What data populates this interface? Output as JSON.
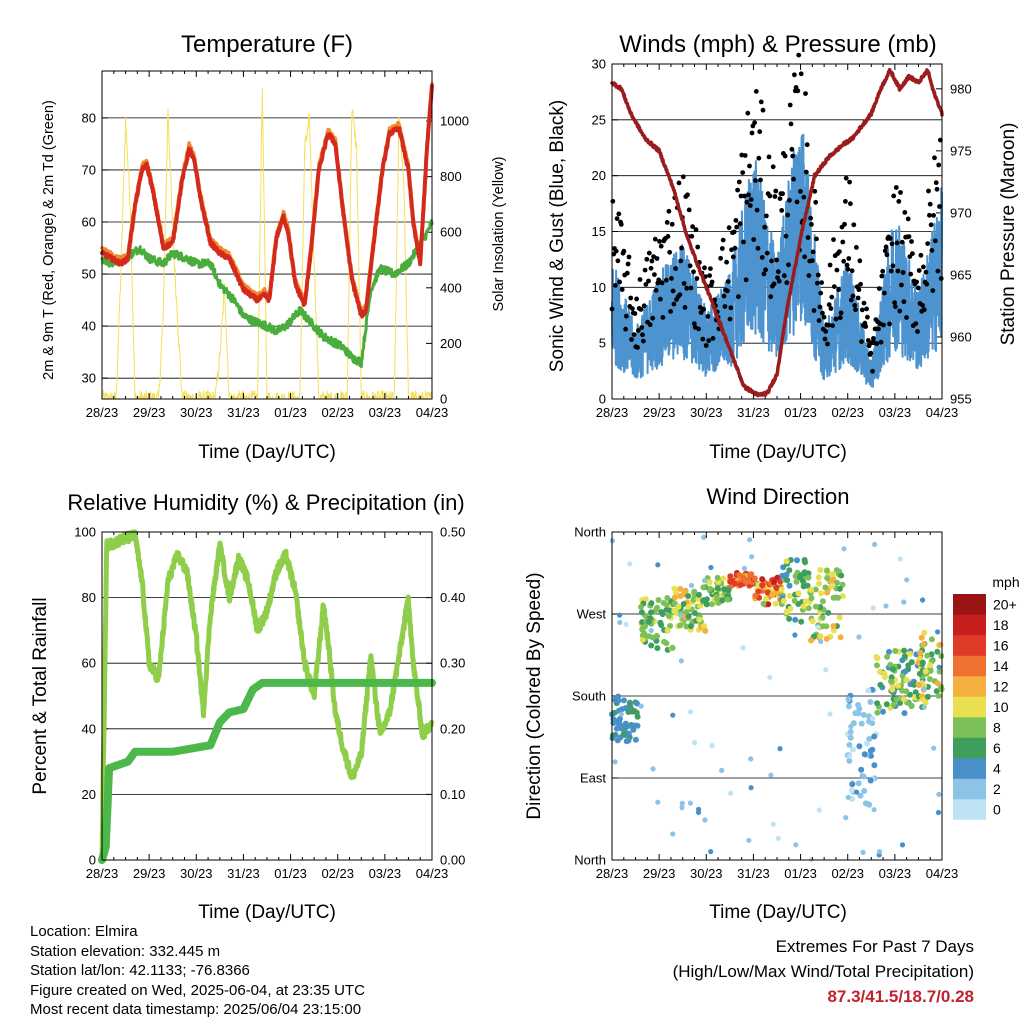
{
  "x_tick_labels": [
    "28/23",
    "29/23",
    "30/23",
    "31/23",
    "01/23",
    "02/23",
    "03/23",
    "04/23"
  ],
  "panels": {
    "temperature": {
      "title": "Temperature (F)",
      "xlabel": "Time (Day/UTC)",
      "ylabel_left": "2m & 9m T (Red, Orange) & 2m Td (Green)",
      "ylabel_right": "Solar Insolation (Yellow)",
      "yticks_left": [
        "30",
        "40",
        "50",
        "60",
        "70",
        "80"
      ],
      "yticks_right": [
        "0",
        "200",
        "400",
        "600",
        "800",
        "1000"
      ]
    },
    "winds": {
      "title": "Winds (mph) & Pressure (mb)",
      "xlabel": "Time (Day/UTC)",
      "ylabel_left": "Sonic Wind & Gust (Blue, Black)",
      "ylabel_right": "Station Pressure (Maroon)",
      "yticks_left": [
        "0",
        "5",
        "10",
        "15",
        "20",
        "25",
        "30"
      ],
      "yticks_right": [
        "955",
        "960",
        "965",
        "970",
        "975",
        "980"
      ]
    },
    "humidity": {
      "title": "Relative Humidity (%) & Precipitation (in)",
      "xlabel": "Time (Day/UTC)",
      "ylabel_left": "Percent & Total Rainfall",
      "yticks_left": [
        "0",
        "20",
        "40",
        "60",
        "80",
        "100"
      ],
      "yticks_right": [
        "0.00",
        "0.10",
        "0.20",
        "0.30",
        "0.40",
        "0.50"
      ]
    },
    "direction": {
      "title": "Wind Direction",
      "xlabel": "Time (Day/UTC)",
      "ylabel_left": "Direction (Colored By Speed)",
      "yticks_left": [
        "North",
        "East",
        "South",
        "West",
        "North"
      ],
      "colorbar_title": "mph",
      "colorbar_labels": [
        "0",
        "2",
        "4",
        "6",
        "8",
        "10",
        "12",
        "14",
        "16",
        "18",
        "20+"
      ],
      "colorbar_colors": [
        "#bfe3f5",
        "#8cc4e8",
        "#4a90c8",
        "#3e9e5e",
        "#7cc05a",
        "#e8e050",
        "#f5b040",
        "#f07030",
        "#e03a28",
        "#c81e1e",
        "#9a1414"
      ]
    }
  },
  "colors": {
    "temp_2m": "#d42a1e",
    "temp_9m": "#f08a2c",
    "dewpoint": "#4aac3c",
    "insolation": "#f5df5a",
    "wind": "#4c93cf",
    "gust": "#000000",
    "pressure": "#9b1c1c",
    "humidity": "#8fce4a",
    "precip": "#4cb84c",
    "extremes_text": "#c0232f"
  },
  "chart_data": [
    {
      "type": "line",
      "title": "Temperature (F)",
      "xlabel": "Time (Day/UTC)",
      "ylabel": "2m & 9m T (Red, Orange) & 2m Td (Green)",
      "y2label": "Solar Insolation (Yellow)",
      "ylim": [
        26,
        89
      ],
      "y2lim": [
        0,
        1180
      ],
      "x_days": [
        0,
        7
      ],
      "series": [
        {
          "name": "2m T",
          "axis": "left",
          "x": [
            0,
            0.2,
            0.4,
            0.55,
            0.7,
            0.85,
            0.95,
            1.1,
            1.3,
            1.5,
            1.7,
            1.85,
            1.95,
            2.1,
            2.3,
            2.5,
            2.7,
            2.9,
            3.0,
            3.15,
            3.3,
            3.45,
            3.55,
            3.7,
            3.85,
            3.95,
            4.1,
            4.3,
            4.45,
            4.6,
            4.8,
            4.95,
            5.1,
            5.3,
            5.5,
            5.6,
            5.75,
            5.95,
            6.1,
            6.3,
            6.5,
            6.6,
            6.75,
            6.9,
            7.0
          ],
          "y": [
            54,
            53,
            52,
            53,
            63,
            70,
            71,
            65,
            55,
            56,
            68,
            74,
            72,
            64,
            56,
            54,
            53,
            49,
            47,
            46,
            45,
            46,
            45,
            57,
            61,
            58,
            48,
            44,
            56,
            70,
            77,
            75,
            63,
            49,
            42,
            43,
            55,
            70,
            77,
            78,
            70,
            60,
            52,
            75,
            86
          ]
        },
        {
          "name": "2m Td",
          "axis": "left",
          "x": [
            0,
            0.2,
            0.5,
            0.8,
            1.0,
            1.3,
            1.5,
            1.8,
            2.0,
            2.3,
            2.5,
            2.8,
            3.0,
            3.2,
            3.5,
            3.7,
            3.9,
            4.2,
            4.5,
            4.7,
            4.9,
            5.1,
            5.3,
            5.5,
            5.7,
            5.9,
            6.2,
            6.5,
            6.7,
            6.9,
            7.0
          ],
          "y": [
            53,
            52,
            53,
            55,
            53,
            52,
            54,
            53,
            52,
            52,
            48,
            45,
            42,
            41,
            40,
            39,
            40,
            43,
            40,
            38,
            37,
            36,
            34,
            33,
            47,
            51,
            50,
            52,
            55,
            58,
            60
          ]
        },
        {
          "name": "Solar Insolation",
          "axis": "right",
          "x": [
            0.3,
            0.4,
            0.5,
            0.6,
            0.7,
            1.2,
            1.3,
            1.4,
            1.5,
            1.7,
            2.4,
            2.5,
            2.6,
            2.7,
            3.3,
            3.4,
            3.5,
            4.2,
            4.3,
            4.4,
            4.6,
            5.2,
            5.3,
            5.4,
            5.5,
            6.2,
            6.3,
            6.4,
            6.5,
            6.6
          ],
          "y": [
            0,
            450,
            1000,
            700,
            0,
            0,
            300,
            1050,
            600,
            0,
            0,
            150,
            400,
            0,
            0,
            1120,
            0,
            0,
            900,
            1000,
            0,
            0,
            1050,
            900,
            0,
            0,
            1000,
            800,
            0,
            0
          ]
        }
      ]
    },
    {
      "type": "line",
      "title": "Winds (mph) & Pressure (mb)",
      "xlabel": "Time (Day/UTC)",
      "ylabel": "Sonic Wind & Gust (Blue, Black)",
      "y2label": "Station Pressure (Maroon)",
      "ylim": [
        0,
        30
      ],
      "y2lim": [
        955,
        982
      ],
      "x_days": [
        0,
        7
      ],
      "series": [
        {
          "name": "Sonic Wind",
          "axis": "left",
          "x": [
            0,
            0.5,
            1,
            1.5,
            2,
            2.5,
            3,
            3.5,
            4,
            4.5,
            5,
            5.5,
            6,
            6.5,
            7
          ],
          "y": [
            8,
            4,
            7,
            9,
            5,
            7,
            14,
            8,
            17,
            4,
            8,
            2,
            11,
            6,
            12
          ]
        },
        {
          "name": "Gust",
          "axis": "left",
          "x": [
            0,
            0.5,
            1,
            1.5,
            2,
            2.5,
            3,
            3.5,
            4,
            4.5,
            5,
            5.5,
            6,
            6.5,
            7
          ],
          "y": [
            16,
            8,
            13,
            17,
            9,
            13,
            24,
            16,
            26,
            8,
            17,
            4,
            16,
            11,
            21
          ]
        },
        {
          "name": "Station Pressure",
          "axis": "right",
          "x": [
            0,
            0.2,
            0.4,
            0.7,
            1.0,
            1.3,
            1.6,
            1.9,
            2.2,
            2.5,
            2.8,
            3.1,
            3.3,
            3.5,
            3.7,
            4.0,
            4.3,
            4.6,
            4.9,
            5.1,
            5.3,
            5.5,
            5.7,
            5.9,
            6.1,
            6.3,
            6.5,
            6.7,
            6.8,
            7.0
          ],
          "y": [
            980.5,
            980,
            978,
            976,
            975,
            972,
            968,
            965,
            962,
            959,
            956,
            955.3,
            955.5,
            957,
            962,
            968,
            973,
            974.5,
            975.5,
            976,
            977,
            978,
            980,
            981.5,
            980,
            981,
            980.5,
            981.5,
            980,
            978
          ]
        }
      ]
    },
    {
      "type": "line",
      "title": "Relative Humidity (%) & Precipitation (in)",
      "xlabel": "Time (Day/UTC)",
      "ylabel": "Percent & Total Rainfall",
      "ylim": [
        0,
        100
      ],
      "y2lim": [
        0,
        0.5
      ],
      "x_days": [
        0,
        7
      ],
      "series": [
        {
          "name": "Relative Humidity",
          "axis": "left",
          "x": [
            0,
            0.1,
            0.3,
            0.5,
            0.7,
            0.85,
            1.0,
            1.2,
            1.4,
            1.6,
            1.8,
            2.0,
            2.15,
            2.3,
            2.5,
            2.7,
            2.9,
            3.1,
            3.3,
            3.5,
            3.7,
            3.9,
            4.1,
            4.3,
            4.5,
            4.7,
            4.8,
            4.95,
            5.1,
            5.3,
            5.5,
            5.7,
            5.9,
            6.1,
            6.3,
            6.5,
            6.6,
            6.8,
            7.0
          ],
          "y": [
            0,
            96,
            97,
            98,
            99,
            85,
            60,
            55,
            85,
            93,
            88,
            68,
            45,
            75,
            96,
            80,
            92,
            85,
            70,
            76,
            88,
            93,
            82,
            60,
            50,
            78,
            66,
            45,
            35,
            25,
            32,
            62,
            38,
            45,
            62,
            80,
            60,
            38,
            42
          ]
        },
        {
          "name": "Total Precipitation",
          "axis": "right",
          "x": [
            0,
            0.08,
            0.15,
            0.35,
            0.55,
            0.7,
            1.5,
            2.3,
            2.5,
            2.7,
            3.0,
            3.2,
            3.4,
            7.0
          ],
          "y": [
            0,
            0.02,
            0.14,
            0.145,
            0.15,
            0.165,
            0.165,
            0.175,
            0.21,
            0.225,
            0.23,
            0.26,
            0.27,
            0.27
          ]
        }
      ]
    },
    {
      "type": "scatter",
      "title": "Wind Direction",
      "xlabel": "Time (Day/UTC)",
      "ylabel": "Direction (Colored By Speed)",
      "ylim": [
        0,
        360
      ],
      "yticks": {
        "0": "North",
        "90": "East",
        "180": "South",
        "270": "West",
        "360": "North"
      },
      "x_days": [
        0,
        7
      ],
      "color_by": "speed (mph)",
      "clusters": [
        {
          "x": [
            0.0,
            0.6
          ],
          "dir": [
            130,
            180
          ],
          "speed": [
            4,
            6
          ]
        },
        {
          "x": [
            0.6,
            1.3
          ],
          "dir": [
            230,
            290
          ],
          "speed": [
            6,
            10
          ]
        },
        {
          "x": [
            1.3,
            2.0
          ],
          "dir": [
            250,
            300
          ],
          "speed": [
            6,
            12
          ]
        },
        {
          "x": [
            2.0,
            2.5
          ],
          "dir": [
            280,
            310
          ],
          "speed": [
            6,
            10
          ]
        },
        {
          "x": [
            2.5,
            3.0
          ],
          "dir": [
            300,
            315
          ],
          "speed": [
            12,
            18
          ]
        },
        {
          "x": [
            3.0,
            3.6
          ],
          "dir": [
            280,
            310
          ],
          "speed": [
            8,
            18
          ]
        },
        {
          "x": [
            3.6,
            4.2
          ],
          "dir": [
            260,
            330
          ],
          "speed": [
            4,
            10
          ]
        },
        {
          "x": [
            4.2,
            4.9
          ],
          "dir": [
            240,
            320
          ],
          "speed": [
            6,
            12
          ]
        },
        {
          "x": [
            5.0,
            5.6
          ],
          "dir": [
            60,
            190
          ],
          "speed": [
            0,
            4
          ]
        },
        {
          "x": [
            5.6,
            6.6
          ],
          "dir": [
            160,
            230
          ],
          "speed": [
            4,
            10
          ]
        },
        {
          "x": [
            6.5,
            7.0
          ],
          "dir": [
            170,
            250
          ],
          "speed": [
            6,
            12
          ]
        }
      ]
    }
  ],
  "footer": {
    "location": "Location: Elmira",
    "elevation": "Station elevation: 332.445 m",
    "latlon": "Station lat/lon: 42.1133; -76.8366",
    "created": "Figure created on Wed, 2025-06-04, at 23:35 UTC",
    "recent": "Most recent data timestamp: 2025/06/04 23:15:00"
  },
  "extremes": {
    "line1": "Extremes For Past 7 Days",
    "line2": "(High/Low/Max Wind/Total Precipitation)",
    "values": "87.3/41.5/18.7/0.28"
  }
}
